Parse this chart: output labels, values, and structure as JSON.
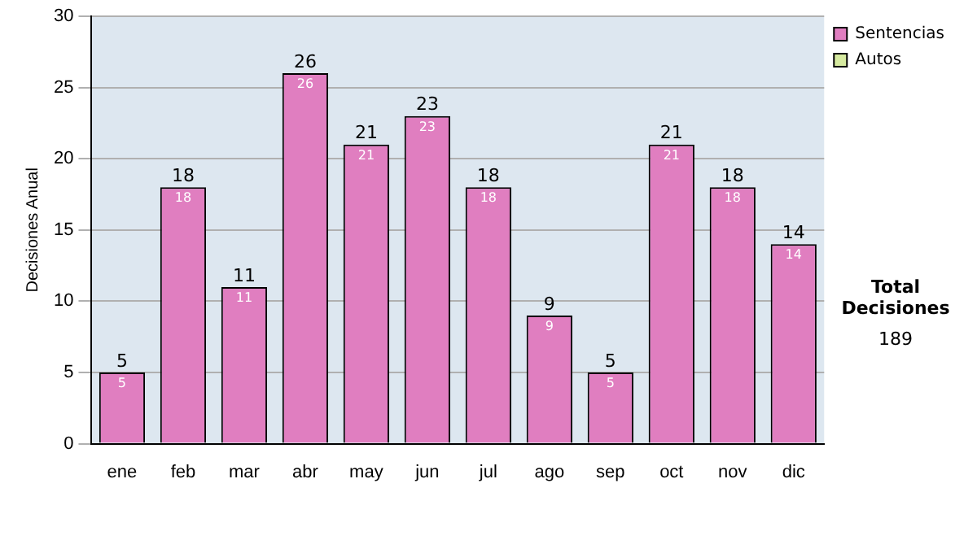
{
  "chart_data": {
    "type": "bar",
    "stacked": true,
    "ylabel": "Decisiones Anual",
    "categories": [
      "ene",
      "feb",
      "mar",
      "abr",
      "may",
      "jun",
      "jul",
      "ago",
      "sep",
      "oct",
      "nov",
      "dic"
    ],
    "series": [
      {
        "name": "Sentencias",
        "color": "#e07ec0",
        "values": [
          5,
          18,
          11,
          26,
          21,
          23,
          18,
          9,
          5,
          21,
          18,
          14
        ],
        "value_labels": [
          "5",
          "18",
          "11",
          "26",
          "21",
          "23",
          "18",
          "9",
          "5",
          "21",
          "18",
          "14"
        ]
      },
      {
        "name": "Autos",
        "color": "#d6eaa0",
        "values": [
          0,
          0,
          0,
          0,
          0,
          0,
          0,
          0,
          0,
          0,
          0,
          0
        ]
      }
    ],
    "totals": [
      "5",
      "18",
      "11",
      "26",
      "21",
      "23",
      "18",
      "9",
      "5",
      "21",
      "18",
      "14"
    ],
    "ylim": [
      0,
      30
    ],
    "yticks": [
      0,
      5,
      10,
      15,
      20,
      25,
      30
    ],
    "grid": "y",
    "legend": "right",
    "annotations": [
      "Total Decisiones",
      "189"
    ]
  }
}
